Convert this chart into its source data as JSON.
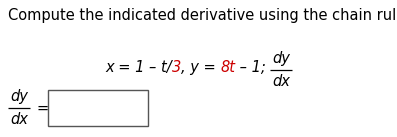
{
  "background_color": "#ffffff",
  "title_text": "Compute the indicated derivative using the chain rule.",
  "title_fontsize": 10.5,
  "title_color": "#000000",
  "eq_fontsize": 10.5,
  "eq_black": "#000000",
  "eq_red": "#cc0000",
  "eq_parts": [
    [
      "x = 1 – t/",
      "#000000"
    ],
    [
      "3",
      "#cc0000"
    ],
    [
      ", y = ",
      "#000000"
    ],
    [
      "8t",
      "#cc0000"
    ],
    [
      " – 1;",
      "#000000"
    ]
  ],
  "frac_dy": "dy",
  "frac_dx": "dx",
  "fig_width": 3.97,
  "fig_height": 1.37,
  "dpi": 100
}
